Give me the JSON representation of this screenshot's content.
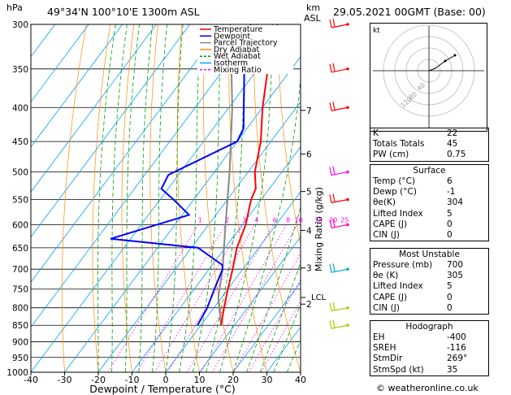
{
  "header": {
    "p_unit": "hPa",
    "location": "49°34'N  100°10'E  1300m  ASL",
    "km_unit": "km",
    "asl": "ASL",
    "datetime": "29.05.2021  00GMT  (Base: 00)"
  },
  "chart_data": {
    "type": "skew-T log-P sounding",
    "xlabel": "Dewpoint / Temperature (°C)",
    "ylabel": "hPa",
    "pressure_ticks": [
      300,
      350,
      400,
      450,
      500,
      550,
      600,
      650,
      700,
      750,
      800,
      850,
      900,
      950,
      1000
    ],
    "temp_ticks": [
      -40,
      -30,
      -20,
      -10,
      0,
      10,
      20,
      30,
      40
    ],
    "xlim": [
      -40,
      40
    ],
    "ylim": [
      1000,
      300
    ],
    "km_ticks": [
      {
        "label": "7",
        "p": 404
      },
      {
        "label": "6",
        "p": 470
      },
      {
        "label": "5",
        "p": 535
      },
      {
        "label": "4",
        "p": 612
      },
      {
        "label": "3",
        "p": 697
      },
      {
        "label": "2",
        "p": 790
      }
    ],
    "lcl": {
      "label": "LCL",
      "p": 772
    },
    "mixing_ratio_labels": [
      "1",
      "2",
      "3",
      "4",
      "6",
      "8",
      "10",
      "15",
      "20",
      "25"
    ],
    "mixing_ratio_values": [
      1,
      2,
      3,
      4,
      6,
      8,
      10,
      15,
      20,
      25
    ],
    "mixing_axis_label": "Mixing Ratio (g/kg)",
    "legend": [
      "Temperature",
      "Dewpoint",
      "Parcel Trajectory",
      "Dry Adiabat",
      "Wet Adiabat",
      "Isotherm",
      "Mixing Ratio"
    ],
    "legend_colors": [
      "#ff0000",
      "#0000ff",
      "#888888",
      "#ff8c00",
      "#00a000",
      "#00a0ff",
      "#ff00ff"
    ],
    "temperature": [
      {
        "p": 850,
        "t": 6
      },
      {
        "p": 800,
        "t": 3
      },
      {
        "p": 750,
        "t": 0
      },
      {
        "p": 700,
        "t": -3
      },
      {
        "p": 650,
        "t": -6.5
      },
      {
        "p": 600,
        "t": -9
      },
      {
        "p": 550,
        "t": -13
      },
      {
        "p": 530,
        "t": -14
      },
      {
        "p": 500,
        "t": -18
      },
      {
        "p": 450,
        "t": -23
      },
      {
        "p": 400,
        "t": -30
      },
      {
        "p": 350,
        "t": -37
      },
      {
        "p": 300,
        "t": -44
      }
    ],
    "dewpoint": [
      {
        "p": 850,
        "t": -1
      },
      {
        "p": 800,
        "t": -2
      },
      {
        "p": 750,
        "t": -4
      },
      {
        "p": 700,
        "t": -6
      },
      {
        "p": 690,
        "t": -7
      },
      {
        "p": 650,
        "t": -18
      },
      {
        "p": 630,
        "t": -46
      },
      {
        "p": 580,
        "t": -28
      },
      {
        "p": 550,
        "t": -36
      },
      {
        "p": 530,
        "t": -42
      },
      {
        "p": 505,
        "t": -43
      },
      {
        "p": 450,
        "t": -30
      },
      {
        "p": 430,
        "t": -31
      },
      {
        "p": 350,
        "t": -44
      },
      {
        "p": 300,
        "t": -52
      }
    ],
    "parcel": [
      {
        "p": 850,
        "t": 6
      },
      {
        "p": 772,
        "t": -1
      },
      {
        "p": 700,
        "t": -6
      },
      {
        "p": 600,
        "t": -15
      },
      {
        "p": 500,
        "t": -25.5
      },
      {
        "p": 400,
        "t": -39
      },
      {
        "p": 300,
        "t": -58
      }
    ]
  },
  "hodograph": {
    "kt_label": "kt",
    "ring_labels": [
      "40",
      "80",
      "120"
    ]
  },
  "indices": [
    {
      "label": "K",
      "value": "22"
    },
    {
      "label": "Totals Totals",
      "value": "45"
    },
    {
      "label": "PW (cm)",
      "value": "0.75"
    }
  ],
  "surface": {
    "title": "Surface",
    "rows": [
      {
        "label": "Temp (°C)",
        "value": "6"
      },
      {
        "label": "Dewp (°C)",
        "value": "-1"
      },
      {
        "label": "θe(K)",
        "value": "304"
      },
      {
        "label": "Lifted Index",
        "value": "5"
      },
      {
        "label": "CAPE (J)",
        "value": "0"
      },
      {
        "label": "CIN (J)",
        "value": "0"
      }
    ]
  },
  "most_unstable": {
    "title": "Most Unstable",
    "rows": [
      {
        "label": "Pressure (mb)",
        "value": "700"
      },
      {
        "label": "θe (K)",
        "value": "305"
      },
      {
        "label": "Lifted Index",
        "value": "5"
      },
      {
        "label": "CAPE (J)",
        "value": "0"
      },
      {
        "label": "CIN (J)",
        "value": "0"
      }
    ]
  },
  "hodograph_table": {
    "title": "Hodograph",
    "rows": [
      {
        "label": "EH",
        "value": "-400"
      },
      {
        "label": "SREH",
        "value": "-116"
      },
      {
        "label": "StmDir",
        "value": "269°"
      },
      {
        "label": "StmSpd (kt)",
        "value": "35"
      }
    ]
  },
  "footer": {
    "credit": "© weatheronline.co.uk"
  }
}
